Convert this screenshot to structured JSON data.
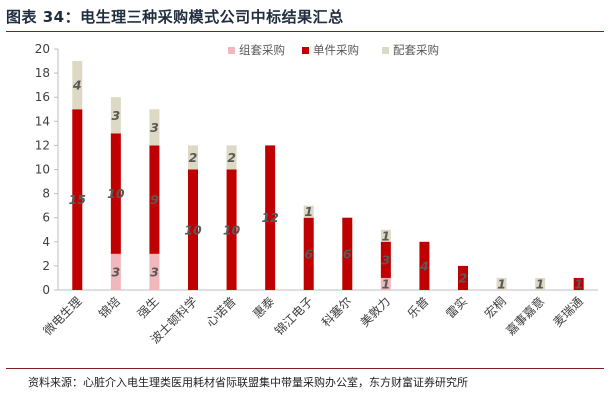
{
  "title": "图表 34：电生理三种采购模式公司中标结果汇总",
  "source": "资料来源：心脏介入电生理类医用耗材省际联盟集中带量采购办公室，东方财富证券研究所",
  "colors": {
    "组套采购": "#f0b7bd",
    "单件采购": "#c00000",
    "配套采购": "#ddd9c4"
  },
  "chart_data": {
    "type": "bar",
    "stacked": true,
    "categories": [
      "微电生理",
      "锦培",
      "强生",
      "波士顿科学",
      "心诺普",
      "惠泰",
      "锦江电子",
      "科塞尔",
      "美敦力",
      "乐普",
      "雷实",
      "宏桐",
      "嘉事嘉意",
      "麦瑞通"
    ],
    "series": [
      {
        "name": "组套采购",
        "values": [
          0,
          3,
          3,
          0,
          0,
          0,
          0,
          0,
          1,
          0,
          0,
          0,
          0,
          0
        ]
      },
      {
        "name": "单件采购",
        "values": [
          15,
          10,
          9,
          10,
          10,
          12,
          6,
          6,
          3,
          4,
          2,
          0,
          0,
          1
        ]
      },
      {
        "name": "配套采购",
        "values": [
          4,
          3,
          3,
          2,
          2,
          0,
          1,
          0,
          1,
          0,
          0,
          1,
          1,
          0
        ]
      }
    ],
    "ylim": [
      0,
      20
    ],
    "yticks": [
      0,
      2,
      4,
      6,
      8,
      10,
      12,
      14,
      16,
      18,
      20
    ],
    "legend_position": "top-right",
    "grid": false
  }
}
